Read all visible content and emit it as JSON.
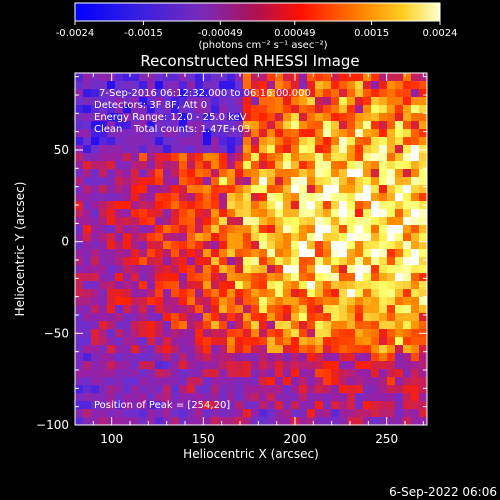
{
  "colorbar": {
    "ticks": [
      "-0.0024",
      "-0.0015",
      "-0.00049",
      "0.00049",
      "0.0015",
      "0.0024"
    ],
    "tick_values": [
      -0.0024,
      -0.0015,
      -0.00049,
      0.00049,
      0.0015,
      0.0024
    ],
    "unit_label": "(photons cm⁻² s⁻¹ asec⁻²)",
    "range": [
      -0.0024,
      0.0024
    ]
  },
  "chart_data": {
    "type": "heatmap",
    "title": "Reconstructed RHESSI Image",
    "xlabel": "Heliocentric X (arcsec)",
    "ylabel": "Heliocentric Y (arcsec)",
    "xlim": [
      80,
      272
    ],
    "ylim": [
      -100,
      92
    ],
    "x_ticks": [
      "100",
      "150",
      "200",
      "250"
    ],
    "x_tick_values": [
      100,
      150,
      200,
      250
    ],
    "y_ticks": [
      "50",
      "0",
      "−50",
      "−100"
    ],
    "y_tick_values": [
      50,
      0,
      -50,
      -100
    ],
    "annotations": [
      "7-Sep-2016 06:12:32.000 to 06:16:00.000",
      "Detectors: 3F 8F, Att 0",
      "Energy Range: 12.0 - 25.0 keV",
      "Clean",
      "Total counts: 1.47E+03"
    ],
    "peak_label": "Position of Peak = [254,20]",
    "peak": [
      254,
      20
    ],
    "colormap": [
      "#0000ff",
      "#6a2fd0",
      "#9a1fa0",
      "#ff2000",
      "#ff9000",
      "#ffff60",
      "#ffffff"
    ]
  },
  "footer": {
    "timestamp": "6-Sep-2022 06:06"
  }
}
